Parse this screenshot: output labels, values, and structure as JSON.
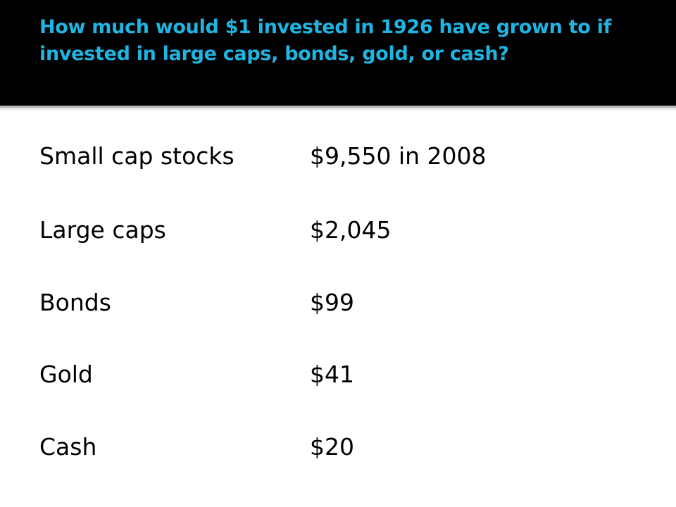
{
  "slide": {
    "title": "How much would $1 invested in 1926 have grown to if invested in large caps, bonds, gold, or cash?",
    "rows": [
      {
        "label": "Small cap stocks",
        "value": "$9,550 in 2008"
      },
      {
        "label": "Large caps",
        "value": "$2,045"
      },
      {
        "label": "Bonds",
        "value": "$99"
      },
      {
        "label": "Gold",
        "value": "$41"
      },
      {
        "label": "Cash",
        "value": "$20"
      }
    ]
  },
  "colors": {
    "title_background": "#000000",
    "title_text": "#1fb5e3",
    "body_text": "#000000",
    "background": "#ffffff"
  }
}
